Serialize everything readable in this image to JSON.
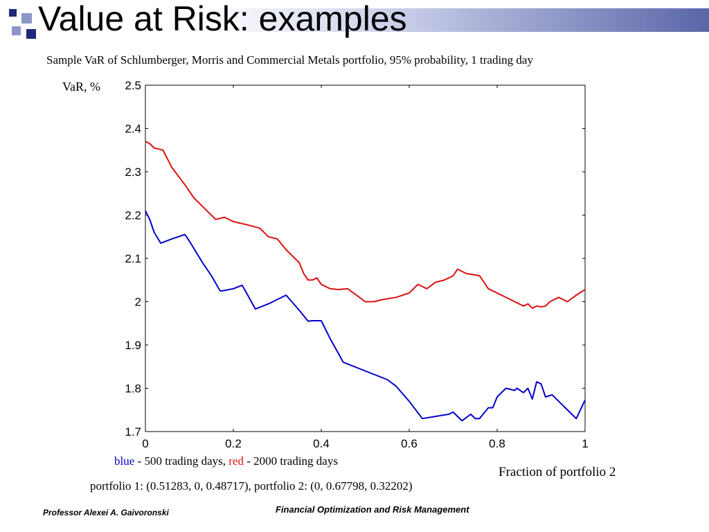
{
  "slide": {
    "title": "Value at Risk: examples",
    "subtitle": "Sample VaR of Schlumberger, Morris and Commercial Metals portfolio, 95% probability, 1 trading day",
    "legend": {
      "blue_word": "blue",
      "blue_text": " - 500 trading days, ",
      "red_word": "red",
      "red_text": " - 2000 trading days",
      "blue_color": "#0000cc",
      "red_color": "#dd1111"
    },
    "portfolio_note": "portfolio 1: (0.51283, 0, 0.48717), portfolio 2: (0, 0.67798, 0.32202)",
    "footer_left": "Professor Alexei A. Gaivoronski",
    "footer_center": "Financial Optimization and Risk Management",
    "decoration_colors": [
      "#1f2a78",
      "#8d95c8"
    ]
  },
  "chart_data": {
    "type": "line",
    "title": "",
    "xlabel": "Fraction of portfolio 2",
    "ylabel": "VaR, %",
    "xlim": [
      0,
      1
    ],
    "ylim": [
      1.7,
      2.5
    ],
    "xticks": [
      "0",
      "0.2",
      "0.4",
      "0.6",
      "0.8",
      "1"
    ],
    "xtick_values": [
      0,
      0.2,
      0.4,
      0.6,
      0.8,
      1
    ],
    "yticks": [
      "1.7",
      "1.8",
      "1.9",
      "2",
      "2.1",
      "2.2",
      "2.3",
      "2.4",
      "2.5"
    ],
    "ytick_values": [
      1.7,
      1.8,
      1.9,
      2.0,
      2.1,
      2.2,
      2.3,
      2.4,
      2.5
    ],
    "grid": false,
    "series": [
      {
        "name": "500 trading days",
        "color": "#0000cc",
        "x": [
          0,
          0.01,
          0.02,
          0.035,
          0.06,
          0.09,
          0.1,
          0.13,
          0.15,
          0.17,
          0.175,
          0.2,
          0.22,
          0.23,
          0.25,
          0.28,
          0.3,
          0.32,
          0.35,
          0.37,
          0.38,
          0.4,
          0.42,
          0.45,
          0.5,
          0.55,
          0.57,
          0.6,
          0.63,
          0.66,
          0.69,
          0.7,
          0.72,
          0.74,
          0.75,
          0.76,
          0.78,
          0.79,
          0.8,
          0.82,
          0.84,
          0.845,
          0.86,
          0.87,
          0.88,
          0.89,
          0.9,
          0.91,
          0.925,
          0.94,
          0.97,
          0.98,
          1
        ],
        "y": [
          2.21,
          2.19,
          2.16,
          2.135,
          2.145,
          2.155,
          2.14,
          2.09,
          2.06,
          2.025,
          2.025,
          2.03,
          2.038,
          2.02,
          1.983,
          1.995,
          2.005,
          2.015,
          1.98,
          1.955,
          1.956,
          1.956,
          1.915,
          1.86,
          1.84,
          1.82,
          1.805,
          1.77,
          1.73,
          1.735,
          1.74,
          1.745,
          1.725,
          1.74,
          1.73,
          1.73,
          1.755,
          1.755,
          1.78,
          1.8,
          1.795,
          1.8,
          1.79,
          1.8,
          1.775,
          1.815,
          1.81,
          1.78,
          1.785,
          1.77,
          1.74,
          1.73,
          1.773
        ]
      },
      {
        "name": "2000 trading days",
        "color": "#dd1111",
        "x": [
          0,
          0.01,
          0.02,
          0.04,
          0.06,
          0.09,
          0.11,
          0.14,
          0.16,
          0.18,
          0.2,
          0.23,
          0.26,
          0.28,
          0.3,
          0.32,
          0.35,
          0.36,
          0.37,
          0.38,
          0.39,
          0.4,
          0.42,
          0.44,
          0.46,
          0.48,
          0.5,
          0.52,
          0.54,
          0.57,
          0.6,
          0.62,
          0.64,
          0.66,
          0.68,
          0.7,
          0.71,
          0.73,
          0.76,
          0.78,
          0.81,
          0.84,
          0.86,
          0.87,
          0.88,
          0.89,
          0.9,
          0.91,
          0.92,
          0.94,
          0.96,
          0.98,
          1
        ],
        "y": [
          2.37,
          2.365,
          2.355,
          2.35,
          2.31,
          2.27,
          2.24,
          2.21,
          2.19,
          2.195,
          2.185,
          2.178,
          2.17,
          2.15,
          2.145,
          2.12,
          2.09,
          2.065,
          2.05,
          2.05,
          2.055,
          2.04,
          2.03,
          2.028,
          2.03,
          2.015,
          2.0,
          2.0,
          2.005,
          2.01,
          2.02,
          2.04,
          2.03,
          2.045,
          2.05,
          2.06,
          2.075,
          2.065,
          2.06,
          2.03,
          2.015,
          2.0,
          1.99,
          1.995,
          1.985,
          1.99,
          1.988,
          1.99,
          2.0,
          2.01,
          2.0,
          2.015,
          2.028
        ]
      }
    ]
  }
}
